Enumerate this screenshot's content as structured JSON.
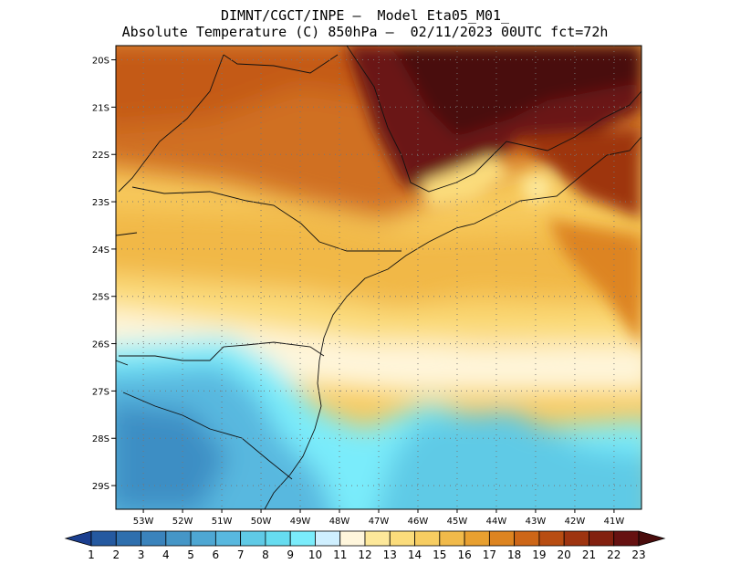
{
  "header": {
    "line1": "DIMNT/CGCT/INPE —  Model Eta05_M01_",
    "line2": "Absolute Temperature (C) 850hPa —  02/11/2023 00UTC fct=72h"
  },
  "map": {
    "lat_labels": [
      "20S",
      "21S",
      "22S",
      "23S",
      "24S",
      "25S",
      "26S",
      "27S",
      "28S",
      "29S"
    ],
    "lon_labels": [
      "53W",
      "52W",
      "51W",
      "50W",
      "49W",
      "48W",
      "47W",
      "46W",
      "45W",
      "44W",
      "43W",
      "42W",
      "41W"
    ],
    "lat_range": [
      -29.5,
      -19.7
    ],
    "lon_range": [
      -53.7,
      -40.3
    ],
    "grid": "dotted",
    "features": [
      "coastline",
      "state-borders",
      "country-borders"
    ]
  },
  "colorbar": {
    "labels": [
      "1",
      "2",
      "3",
      "4",
      "5",
      "6",
      "7",
      "8",
      "9",
      "10",
      "11",
      "12",
      "13",
      "14",
      "15",
      "16",
      "17",
      "18",
      "19",
      "20",
      "21",
      "22",
      "23"
    ],
    "colors": [
      "#1b3f8f",
      "#2459a0",
      "#2e6fae",
      "#3a83bc",
      "#4596c7",
      "#4ea7d3",
      "#58b8df",
      "#5fcae6",
      "#66dcf0",
      "#7aecfb",
      "#cfefff",
      "#fff6dc",
      "#fde89a",
      "#fbdc7b",
      "#f7cd61",
      "#f1ba4a",
      "#e8a030",
      "#dd8420",
      "#cd6617",
      "#b84d12",
      "#9e3410",
      "#82200f",
      "#661111",
      "#4a0d0d"
    ]
  }
}
